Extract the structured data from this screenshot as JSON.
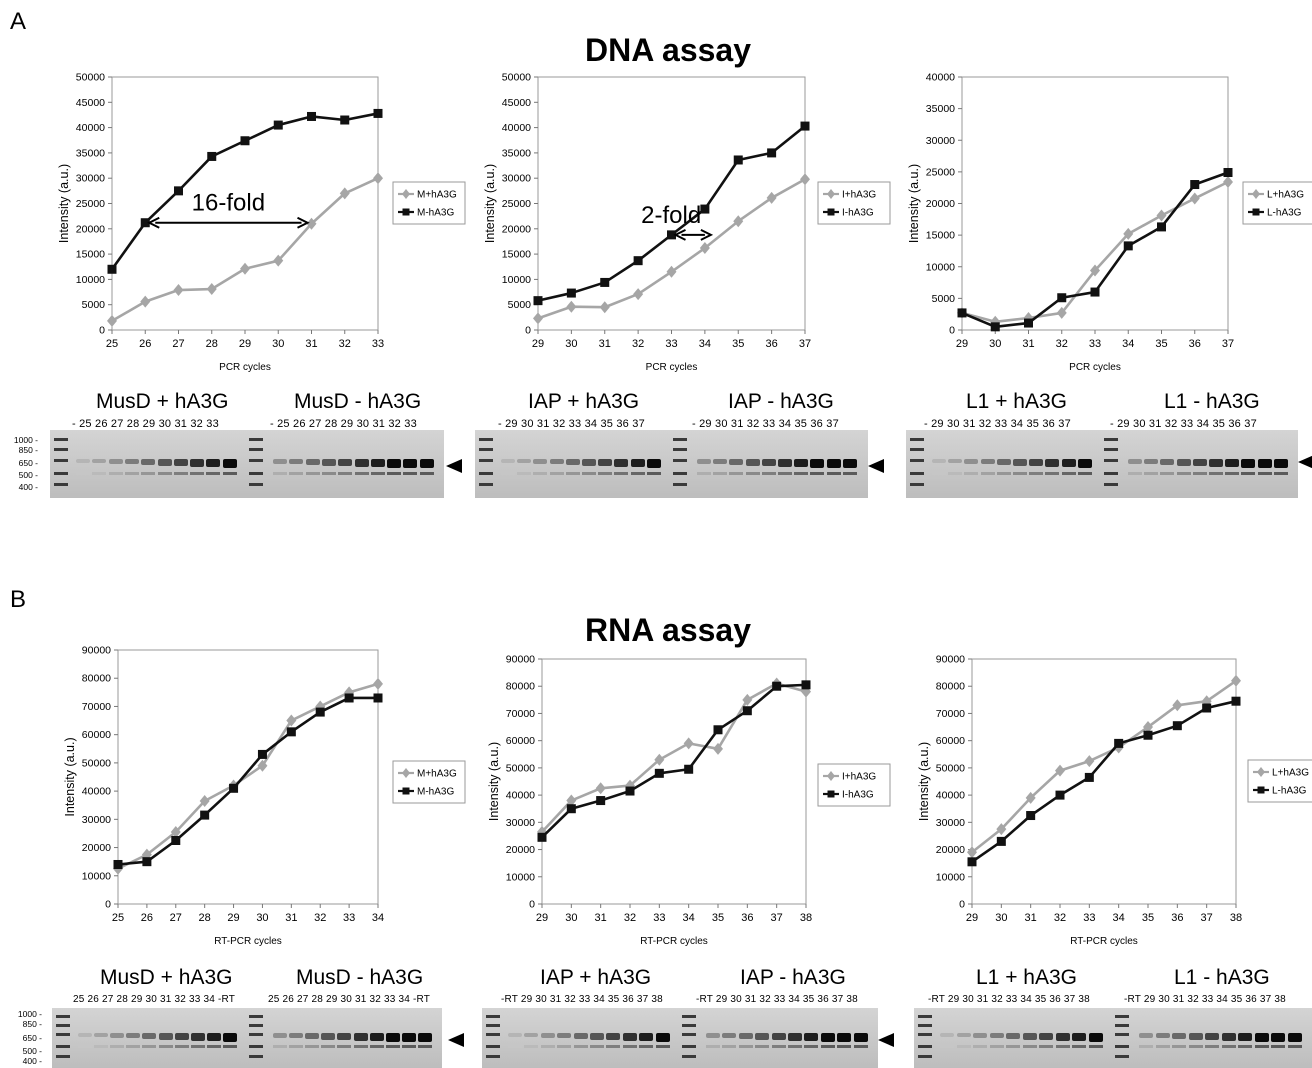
{
  "panels": {
    "a": "A",
    "b": "B"
  },
  "titles": {
    "dna": "DNA assay",
    "rna": "RNA assay"
  },
  "chart_data": [
    {
      "type": "line",
      "ylabel": "Intensity (a.u.)",
      "xlabel": "PCR cycles",
      "x": [
        25,
        26,
        27,
        28,
        29,
        30,
        31,
        32,
        33
      ],
      "ylim": [
        0,
        50000
      ],
      "ystep": 5000,
      "series": [
        {
          "name": "M+hA3G",
          "color": "#a6a6a6",
          "marker": "diamond",
          "values": [
            1800,
            5600,
            7900,
            8100,
            12100,
            13700,
            21000,
            27000,
            30000
          ]
        },
        {
          "name": "M-hA3G",
          "color": "#111111",
          "marker": "square",
          "values": [
            12000,
            21200,
            27500,
            34300,
            37400,
            40500,
            42200,
            41500,
            42800
          ]
        }
      ],
      "annotation": {
        "text": "16-fold",
        "x1": 26,
        "x2": 31,
        "y": 21200
      }
    },
    {
      "type": "line",
      "ylabel": "Intensity (a.u.)",
      "xlabel": "PCR cycles",
      "x": [
        29,
        30,
        31,
        32,
        33,
        34,
        35,
        36,
        37
      ],
      "ylim": [
        0,
        50000
      ],
      "ystep": 5000,
      "series": [
        {
          "name": "I+hA3G",
          "color": "#a6a6a6",
          "marker": "diamond",
          "values": [
            2300,
            4600,
            4500,
            7100,
            11500,
            16200,
            21500,
            26100,
            29800
          ]
        },
        {
          "name": "I-hA3G",
          "color": "#111111",
          "marker": "square",
          "values": [
            5800,
            7300,
            9400,
            13700,
            18800,
            23900,
            33600,
            35000,
            40300
          ]
        }
      ],
      "annotation": {
        "text": "2-fold",
        "x1": 33,
        "x2": 34.3,
        "y": 18800
      }
    },
    {
      "type": "line",
      "ylabel": "Intensity (a.u.)",
      "xlabel": "PCR cycles",
      "x": [
        29,
        30,
        31,
        32,
        33,
        34,
        35,
        36,
        37
      ],
      "ylim": [
        0,
        40000
      ],
      "ystep": 5000,
      "series": [
        {
          "name": "L+hA3G",
          "color": "#a6a6a6",
          "marker": "diamond",
          "values": [
            2700,
            1300,
            1900,
            2700,
            9400,
            15200,
            18100,
            20800,
            23400
          ]
        },
        {
          "name": "L-hA3G",
          "color": "#111111",
          "marker": "square",
          "values": [
            2700,
            500,
            1100,
            5100,
            6000,
            13300,
            16300,
            23000,
            24900
          ]
        }
      ]
    },
    {
      "type": "line",
      "ylabel": "Intensity (a.u.)",
      "xlabel": "RT-PCR cycles",
      "x": [
        25,
        26,
        27,
        28,
        29,
        30,
        31,
        32,
        33,
        34
      ],
      "ylim": [
        0,
        90000
      ],
      "ystep": 10000,
      "series": [
        {
          "name": "M+hA3G",
          "color": "#a6a6a6",
          "marker": "diamond",
          "values": [
            12500,
            17500,
            25500,
            36500,
            42000,
            49000,
            65000,
            70000,
            75000,
            78000
          ]
        },
        {
          "name": "M-hA3G",
          "color": "#111111",
          "marker": "square",
          "values": [
            14000,
            15000,
            22500,
            31500,
            41000,
            53000,
            61000,
            68000,
            73000,
            73000
          ]
        }
      ]
    },
    {
      "type": "line",
      "ylabel": "Intensity (a.u.)",
      "xlabel": "RT-PCR cycles",
      "x": [
        29,
        30,
        31,
        32,
        33,
        34,
        35,
        36,
        37,
        38
      ],
      "ylim": [
        0,
        90000
      ],
      "ystep": 10000,
      "series": [
        {
          "name": "I+hA3G",
          "color": "#a6a6a6",
          "marker": "diamond",
          "values": [
            26500,
            38000,
            42500,
            43500,
            53000,
            59000,
            57000,
            75000,
            81000,
            78000
          ]
        },
        {
          "name": "I-hA3G",
          "color": "#111111",
          "marker": "square",
          "values": [
            24500,
            35000,
            38000,
            41500,
            48000,
            49500,
            64000,
            71000,
            80000,
            80500
          ]
        }
      ]
    },
    {
      "type": "line",
      "ylabel": "Intensity (a.u.)",
      "xlabel": "RT-PCR cycles",
      "x": [
        29,
        30,
        31,
        32,
        33,
        34,
        35,
        36,
        37,
        38
      ],
      "ylim": [
        0,
        90000
      ],
      "ystep": 10000,
      "series": [
        {
          "name": "L+hA3G",
          "color": "#a6a6a6",
          "marker": "diamond",
          "values": [
            19000,
            27500,
            39000,
            49000,
            52500,
            57500,
            65000,
            73000,
            74500,
            82000
          ]
        },
        {
          "name": "L-hA3G",
          "color": "#111111",
          "marker": "square",
          "values": [
            15500,
            23000,
            32500,
            40000,
            46500,
            59000,
            62000,
            65500,
            72000,
            74500
          ]
        }
      ]
    }
  ],
  "gels": {
    "dna": [
      {
        "titles": [
          "MusD + hA3G",
          "MusD - hA3G"
        ],
        "lanes": [
          "- 25 26 27 28 29 30 31 32 33",
          "- 25 26 27 28 29 30 31 32 33"
        ],
        "ladder": [
          "1000 -",
          "850 -",
          "650 -",
          "500 -",
          "400 -"
        ]
      },
      {
        "titles": [
          "IAP + hA3G",
          "IAP - hA3G"
        ],
        "lanes": [
          "- 29 30 31 32 33 34 35 36 37",
          "- 29 30 31 32 33 34 35 36 37"
        ]
      },
      {
        "titles": [
          "L1 + hA3G",
          "L1 - hA3G"
        ],
        "lanes": [
          "- 29 30 31 32 33 34 35 36 37",
          "- 29 30 31 32 33 34 35 36 37"
        ]
      }
    ],
    "rna": [
      {
        "titles": [
          "MusD + hA3G",
          "MusD - hA3G"
        ],
        "lanes": [
          "25 26 27 28 29 30 31 32 33 34 -RT",
          "25 26 27 28 29 30 31 32 33 34 -RT"
        ],
        "ladder": [
          "1000 -",
          "850 -",
          "650 -",
          "500 -",
          "400 -"
        ]
      },
      {
        "titles": [
          "IAP + hA3G",
          "IAP - hA3G"
        ],
        "lanes": [
          "-RT 29 30 31 32 33 34 35 36 37 38",
          "-RT 29 30 31 32 33 34 35 36 37 38"
        ]
      },
      {
        "titles": [
          "L1 + hA3G",
          "L1 - hA3G"
        ],
        "lanes": [
          "-RT 29 30 31 32 33 34 35 36 37 38",
          "-RT 29 30 31 32 33 34 35 36 37 38"
        ]
      }
    ]
  }
}
